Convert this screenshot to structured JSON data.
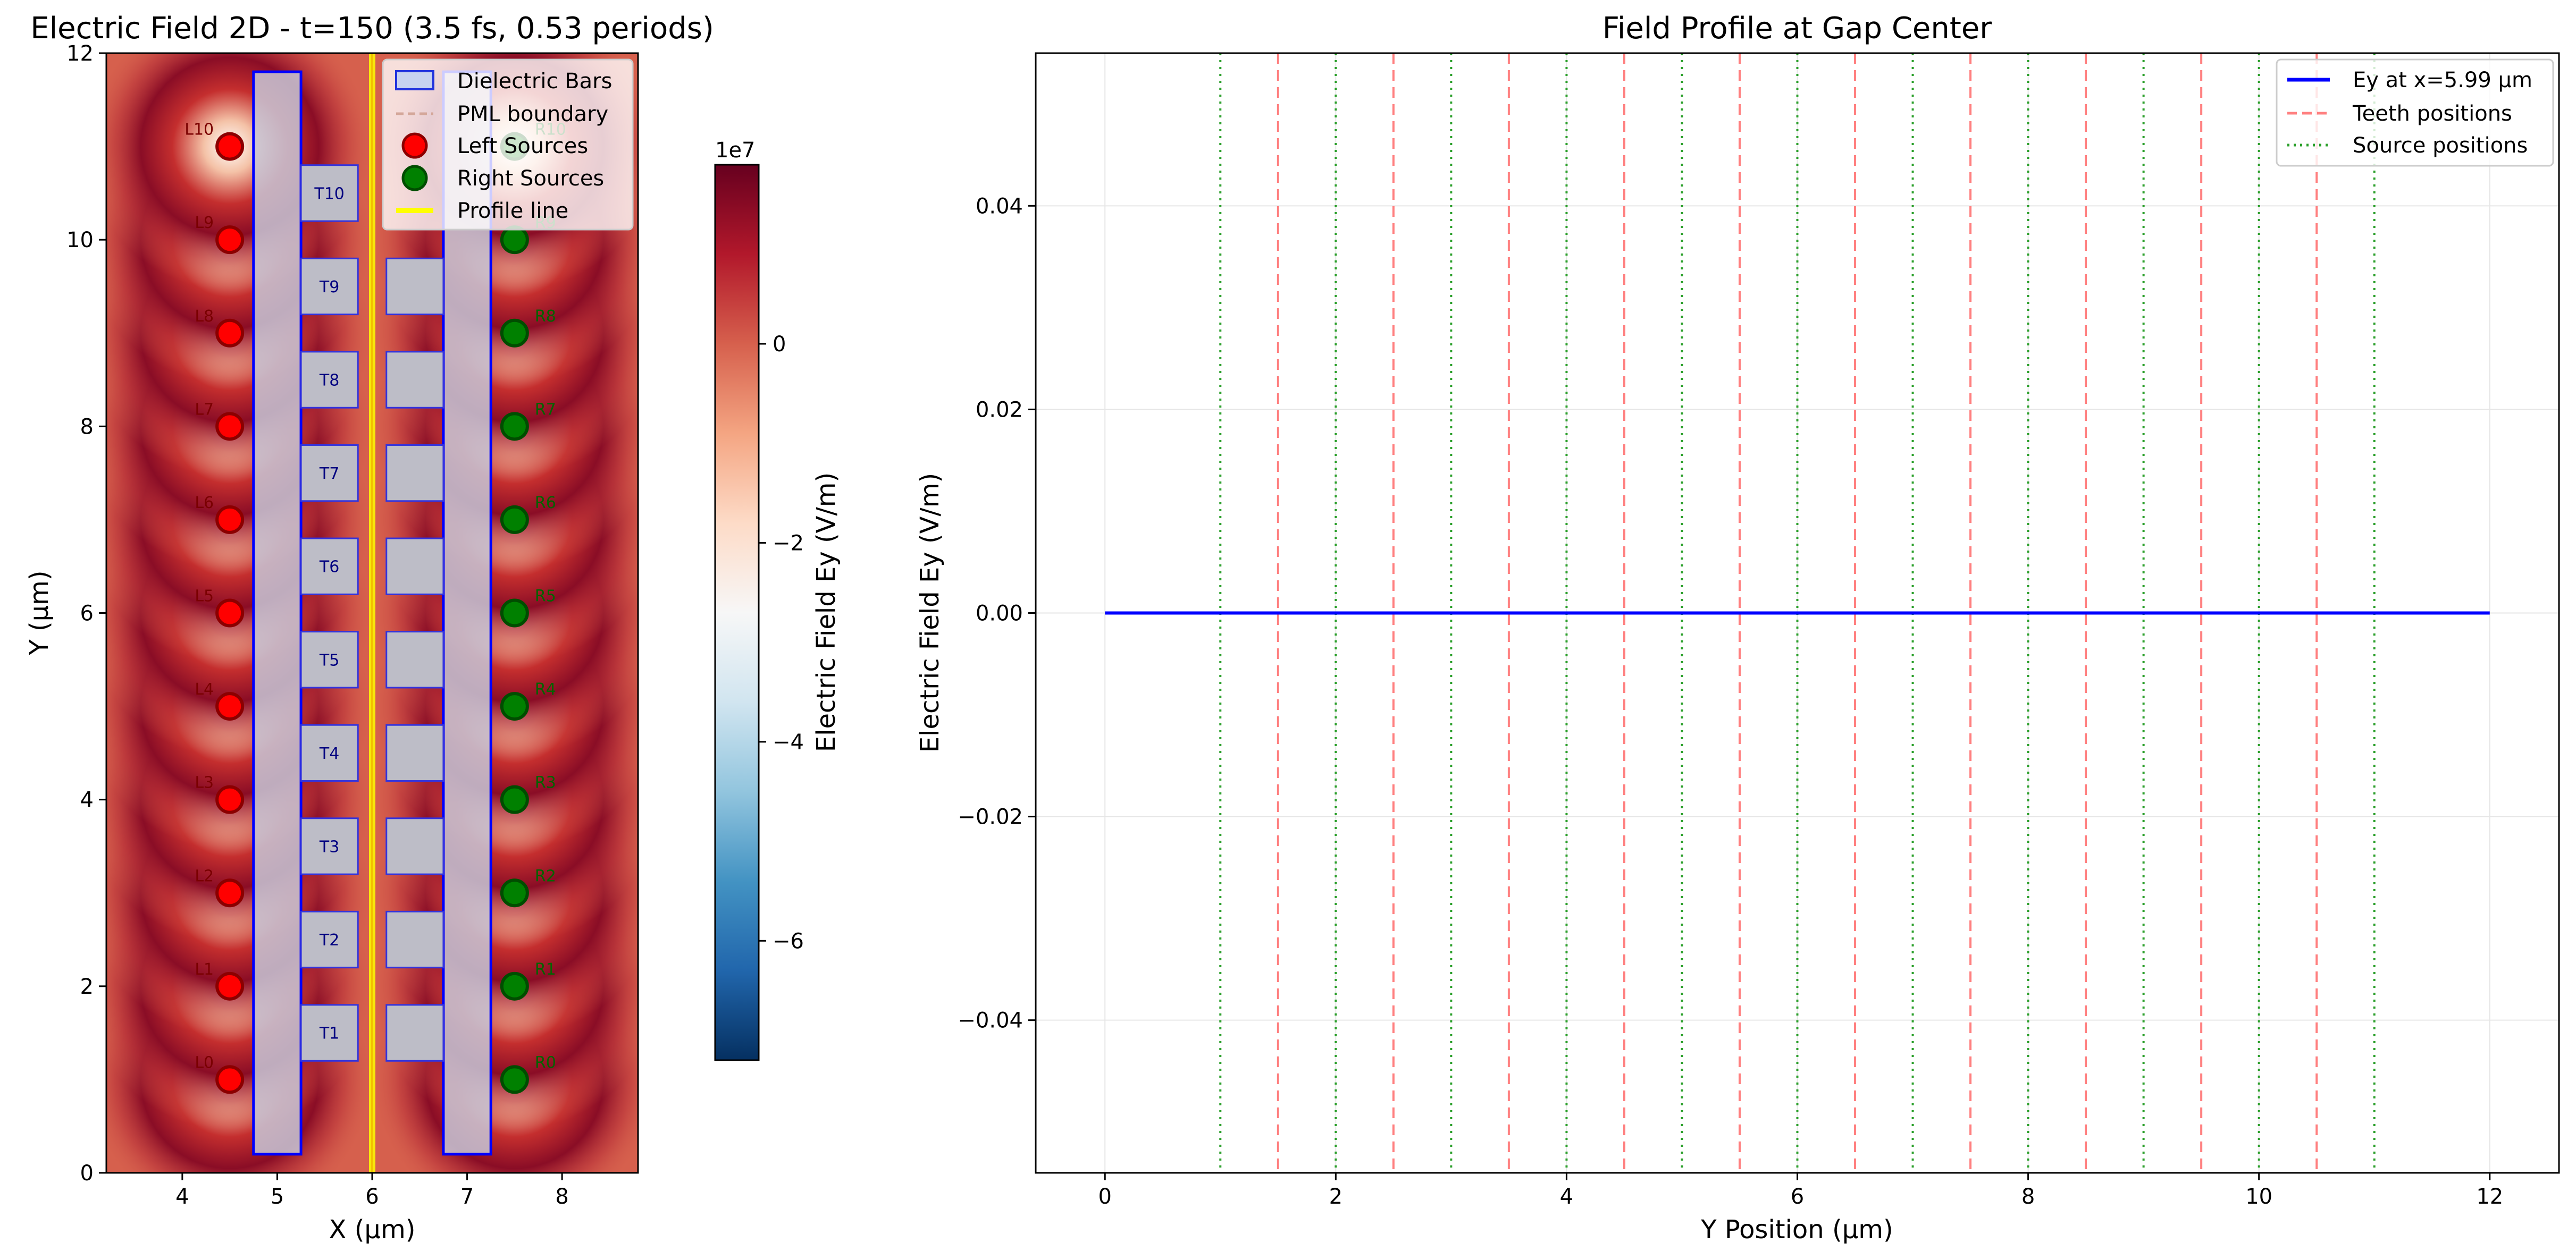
{
  "colors": {
    "left_source": "#ff0000",
    "right_source": "#008000",
    "profile_line": "#ffff00",
    "dielectric_edge": "#0000ff",
    "ey_line": "#0000ff",
    "teeth_line": "#ff8080",
    "source_line": "#2ca02c",
    "colormap": [
      "#053061",
      "#2166ac",
      "#4393c3",
      "#92c5de",
      "#d1e5f0",
      "#f7f7f7",
      "#fddbc7",
      "#f4a582",
      "#d6604d",
      "#b2182b",
      "#67001f"
    ]
  },
  "chart_data": [
    {
      "type": "heatmap",
      "title": "Electric Field 2D - t=150 (3.5 fs, 0.53 periods)",
      "xlabel": "X (μm)",
      "ylabel": "Y (μm)",
      "xlim": [
        3.2,
        8.8
      ],
      "ylim": [
        0,
        12
      ],
      "xticks": [
        4,
        5,
        6,
        7,
        8
      ],
      "yticks": [
        0,
        2,
        4,
        6,
        8,
        10,
        12
      ],
      "colorbar": {
        "label": "Electric Field Ey (V/m)",
        "exponent": "1e7",
        "range": [
          -7.2,
          1.8
        ],
        "ticks": [
          {
            "value": 0,
            "label": "0"
          },
          {
            "value": -2,
            "label": "−2"
          },
          {
            "value": -4,
            "label": "−4"
          },
          {
            "value": -6,
            "label": "−6"
          }
        ]
      },
      "dielectric_bars": [
        {
          "x": [
            4.75,
            5.25
          ],
          "y": [
            0.2,
            11.8
          ]
        },
        {
          "x": [
            6.75,
            7.25
          ],
          "y": [
            0.2,
            11.8
          ]
        }
      ],
      "teeth": [
        {
          "label": "T1",
          "x": [
            5.25,
            5.85
          ],
          "y": [
            1.2,
            1.8
          ]
        },
        {
          "label": "T2",
          "x": [
            5.25,
            5.85
          ],
          "y": [
            2.2,
            2.8
          ]
        },
        {
          "label": "T3",
          "x": [
            5.25,
            5.85
          ],
          "y": [
            3.2,
            3.8
          ]
        },
        {
          "label": "T4",
          "x": [
            5.25,
            5.85
          ],
          "y": [
            4.2,
            4.8
          ]
        },
        {
          "label": "T5",
          "x": [
            5.25,
            5.85
          ],
          "y": [
            5.2,
            5.8
          ]
        },
        {
          "label": "T6",
          "x": [
            5.25,
            5.85
          ],
          "y": [
            6.2,
            6.8
          ]
        },
        {
          "label": "T7",
          "x": [
            5.25,
            5.85
          ],
          "y": [
            7.2,
            7.8
          ]
        },
        {
          "label": "T8",
          "x": [
            5.25,
            5.85
          ],
          "y": [
            8.2,
            8.8
          ]
        },
        {
          "label": "T9",
          "x": [
            5.25,
            5.85
          ],
          "y": [
            9.2,
            9.8
          ]
        },
        {
          "label": "T10",
          "x": [
            5.25,
            5.85
          ],
          "y": [
            10.2,
            10.8
          ]
        }
      ],
      "right_teeth_y": [
        1.5,
        2.5,
        3.5,
        4.5,
        5.5,
        6.5,
        7.5,
        8.5,
        9.5
      ],
      "right_teeth_x": [
        6.15,
        6.75
      ],
      "left_sources": {
        "x": 4.5,
        "y": [
          1,
          2,
          3,
          4,
          5,
          6,
          7,
          8,
          9,
          10,
          11
        ],
        "labels": [
          "L0",
          "L1",
          "L2",
          "L3",
          "L4",
          "L5",
          "L6",
          "L7",
          "L8",
          "L9",
          "L10"
        ]
      },
      "right_sources": {
        "x": 7.5,
        "y": [
          1,
          2,
          3,
          4,
          5,
          6,
          7,
          8,
          9,
          10,
          11
        ],
        "labels": [
          "R0",
          "R1",
          "R2",
          "R3",
          "R4",
          "R5",
          "R6",
          "R7",
          "R8",
          "R9",
          "R10"
        ]
      },
      "profile_line_x": 6.0,
      "legend": {
        "position": "top-right",
        "entries": [
          "Dielectric Bars",
          "PML boundary",
          "Left Sources",
          "Right Sources",
          "Profile line"
        ]
      }
    },
    {
      "type": "line",
      "title": "Field Profile at Gap Center",
      "xlabel": "Y Position (μm)",
      "ylabel": "Electric Field Ey (V/m)",
      "xlim": [
        -0.6,
        12.6
      ],
      "ylim": [
        -0.055,
        0.055
      ],
      "xticks": [
        0,
        2,
        4,
        6,
        8,
        10,
        12
      ],
      "yticks": [
        -0.04,
        -0.02,
        0.0,
        0.02,
        0.04
      ],
      "ytick_labels": [
        "−0.04",
        "−0.02",
        "0.00",
        "0.02",
        "0.04"
      ],
      "grid": true,
      "series": [
        {
          "name": "Ey at x=5.99 μm",
          "x": [
            0,
            12
          ],
          "y": [
            0,
            0
          ]
        },
        {
          "name": "Teeth positions",
          "x": [
            1.5,
            2.5,
            3.5,
            4.5,
            5.5,
            6.5,
            7.5,
            8.5,
            9.5,
            10.5
          ]
        },
        {
          "name": "Source positions",
          "x": [
            1,
            2,
            3,
            4,
            5,
            6,
            7,
            8,
            9,
            10,
            11
          ]
        }
      ],
      "legend": {
        "position": "top-right"
      }
    }
  ]
}
